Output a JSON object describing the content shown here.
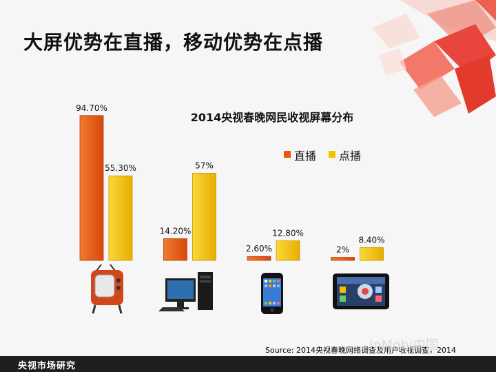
{
  "slide": {
    "title": "大屏优势在直播，移动优势在点播",
    "source": "Source: 2014央视春晚网络调查及用户收视调查，2014",
    "watermark": "InMobi中国",
    "footer": "央视市场研究"
  },
  "colors": {
    "live": "#e8580f",
    "vod": "#f5c000",
    "accent_red": "#e8453c",
    "footer_bg": "#1f1f1f"
  },
  "devices": [
    {
      "icon": "tv-icon"
    },
    {
      "icon": "desktop-pc-icon"
    },
    {
      "icon": "smartphone-icon"
    },
    {
      "icon": "tablet-icon"
    }
  ],
  "chart_data": {
    "type": "bar",
    "title": "2014央视春晚网民收视屏幕分布",
    "categories": [
      "电视",
      "电脑",
      "手机",
      "平板"
    ],
    "series": [
      {
        "name": "直播",
        "values": [
          94.7,
          14.2,
          2.6,
          2.0
        ],
        "labels": [
          "94.70%",
          "14.20%",
          "2.60%",
          "2%"
        ]
      },
      {
        "name": "点播",
        "values": [
          55.3,
          57.0,
          12.8,
          8.4
        ],
        "labels": [
          "55.30%",
          "57%",
          "12.80%",
          "8.40%"
        ]
      }
    ],
    "ylim": [
      0,
      100
    ],
    "legend": "top-right",
    "xlabel": "",
    "ylabel": ""
  }
}
